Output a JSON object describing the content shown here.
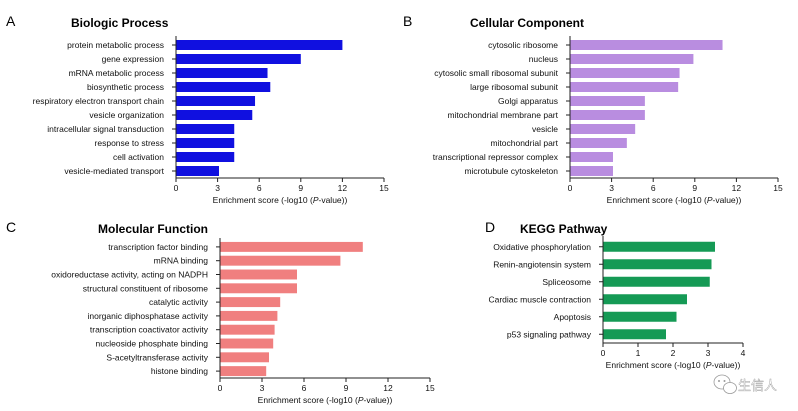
{
  "chart_data": [
    {
      "type": "bar",
      "orientation": "horizontal",
      "panel_letter": "A",
      "title": "Biologic Process",
      "color": "#1010e0",
      "categories": [
        "protein metabolic process",
        "gene expression",
        "mRNA metabolic process",
        "biosynthetic process",
        "respiratory electron transport chain",
        "vesicle organization",
        "intracellular signal transduction",
        "response to stress",
        "cell activation",
        "vesicle-mediated transport"
      ],
      "values": [
        12.0,
        9.0,
        6.6,
        6.8,
        5.7,
        5.5,
        4.2,
        4.2,
        4.2,
        3.1
      ],
      "xlim": [
        0,
        15
      ],
      "ticks": [
        "0",
        "3",
        "6",
        "9",
        "12",
        "15"
      ],
      "xlabel_prefix": "Enrichment score (-log10 (",
      "xlabel_italic": "P",
      "xlabel_suffix": "-value))"
    },
    {
      "type": "bar",
      "orientation": "horizontal",
      "panel_letter": "B",
      "title": "Cellular Component",
      "color": "#b98de0",
      "categories": [
        "cytosolic ribosome",
        "nucleus",
        "cytosolic small ribosomal subunit",
        "large ribosomal subunit",
        "Golgi apparatus",
        "mitochondrial membrane part",
        "vesicle",
        "mitochondrial part",
        "transcriptional repressor complex",
        "microtubule cytoskeleton"
      ],
      "values": [
        11.0,
        8.9,
        7.9,
        7.8,
        5.4,
        5.4,
        4.7,
        4.1,
        3.1,
        3.1
      ],
      "xlim": [
        0,
        15
      ],
      "ticks": [
        "0",
        "3",
        "6",
        "9",
        "12",
        "15"
      ],
      "xlabel_prefix": "Enrichment score (-log10 (",
      "xlabel_italic": "P",
      "xlabel_suffix": "-value))"
    },
    {
      "type": "bar",
      "orientation": "horizontal",
      "panel_letter": "C",
      "title": "Molecular Function",
      "color": "#f07f7f",
      "categories": [
        "transcription factor binding",
        "mRNA binding",
        "oxidoreductase activity, acting on NADPH",
        "structural constituent of ribosome",
        "catalytic activity",
        "inorganic diphosphatase activity",
        "transcription coactivator activity",
        "nucleoside phosphate binding",
        "S-acetyltransferase activity",
        "histone binding"
      ],
      "values": [
        10.2,
        8.6,
        5.5,
        5.5,
        4.3,
        4.1,
        3.9,
        3.8,
        3.5,
        3.3
      ],
      "xlim": [
        0,
        15
      ],
      "ticks": [
        "0",
        "3",
        "6",
        "9",
        "12",
        "15"
      ],
      "xlabel_prefix": "Enrichment score (-log10 (",
      "xlabel_italic": "P",
      "xlabel_suffix": "-value))"
    },
    {
      "type": "bar",
      "orientation": "horizontal",
      "panel_letter": "D",
      "title": "KEGG Pathway",
      "color": "#159a55",
      "categories": [
        "Oxidative phosphorylation",
        "Renin-angiotensin system",
        "Spliceosome",
        "Cardiac muscle contraction",
        "Apoptosis",
        "p53 signaling pathway"
      ],
      "values": [
        3.2,
        3.1,
        3.05,
        2.4,
        2.1,
        1.8
      ],
      "xlim": [
        0,
        4
      ],
      "ticks": [
        "0",
        "1",
        "2",
        "3",
        "4"
      ],
      "xlabel_prefix": "Enrichment score (-log10 (",
      "xlabel_italic": "P",
      "xlabel_suffix": "-value))"
    }
  ],
  "watermark": {
    "text": "生信人",
    "icon": "wechat-icon"
  }
}
